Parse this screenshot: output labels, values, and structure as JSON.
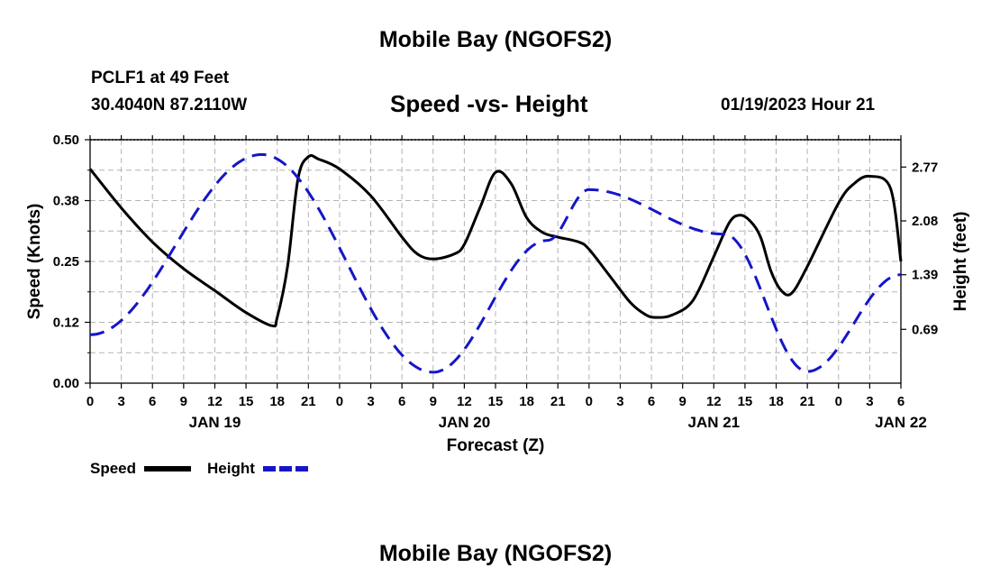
{
  "header": {
    "title": "Mobile Bay (NGOFS2)",
    "station": "PCLF1 at 49 Feet",
    "coords": "30.4040N  87.2110W",
    "subtitle": "Speed -vs- Height",
    "datetime": "01/19/2023 Hour 21"
  },
  "footer": {
    "title": "Mobile Bay (NGOFS2)"
  },
  "colors": {
    "speed": "#000000",
    "height": "#1515c8",
    "grid": "#b4b4b4"
  },
  "chart_data": {
    "type": "line",
    "xlabel": "Forecast (Z)",
    "ylabel": "Speed (Knots)",
    "y2label": "Height (feet)",
    "x_hours_from_jan19_00z": [
      0,
      78
    ],
    "x_tick_labels": [
      "0",
      "3",
      "6",
      "9",
      "12",
      "15",
      "18",
      "21",
      "0",
      "3",
      "6",
      "9",
      "12",
      "15",
      "18",
      "21",
      "0",
      "3",
      "6",
      "9",
      "12",
      "15",
      "18",
      "21",
      "0",
      "3",
      "6"
    ],
    "day_labels": [
      {
        "label": "JAN 19",
        "hour": 12
      },
      {
        "label": "JAN 20",
        "hour": 36
      },
      {
        "label": "JAN 21",
        "hour": 60
      },
      {
        "label": "JAN 22",
        "hour": 78
      }
    ],
    "ylim": [
      0,
      0.5
    ],
    "y_ticks": [
      "0.00",
      "0.12",
      "0.25",
      "0.38",
      "0.50"
    ],
    "y2lim": [
      0,
      3.12
    ],
    "y2_ticks": [
      "0.69",
      "1.39",
      "2.08",
      "2.77"
    ],
    "legend": [
      {
        "name": "Speed",
        "style": "solid"
      },
      {
        "name": "Height",
        "style": "dashed"
      }
    ],
    "series": [
      {
        "name": "Speed",
        "axis": "left",
        "x": [
          0,
          3,
          6,
          9,
          12,
          15,
          17.5,
          18,
          19,
          20,
          21,
          22,
          24,
          27,
          30,
          31.5,
          33,
          35,
          36,
          37.5,
          39,
          40.5,
          42,
          43.5,
          45,
          47,
          48,
          50,
          52,
          53.5,
          54.5,
          56,
          58,
          60,
          61.5,
          62.5,
          63.5,
          64.5,
          65.5,
          66.5,
          67.5,
          69,
          72,
          73.5,
          75,
          77,
          78
        ],
        "values": [
          0.44,
          0.36,
          0.29,
          0.235,
          0.19,
          0.145,
          0.118,
          0.135,
          0.24,
          0.42,
          0.465,
          0.46,
          0.44,
          0.385,
          0.3,
          0.265,
          0.255,
          0.265,
          0.285,
          0.36,
          0.433,
          0.41,
          0.34,
          0.31,
          0.3,
          0.29,
          0.275,
          0.22,
          0.165,
          0.14,
          0.135,
          0.14,
          0.17,
          0.26,
          0.33,
          0.345,
          0.333,
          0.3,
          0.23,
          0.19,
          0.185,
          0.24,
          0.37,
          0.41,
          0.425,
          0.4,
          0.25
        ]
      },
      {
        "name": "Height",
        "axis": "right",
        "x": [
          0,
          16.5,
          33,
          44,
          48,
          61,
          69,
          78
        ],
        "values": [
          0.62,
          2.93,
          0.14,
          1.83,
          2.48,
          1.91,
          0.15,
          1.39
        ]
      }
    ]
  }
}
